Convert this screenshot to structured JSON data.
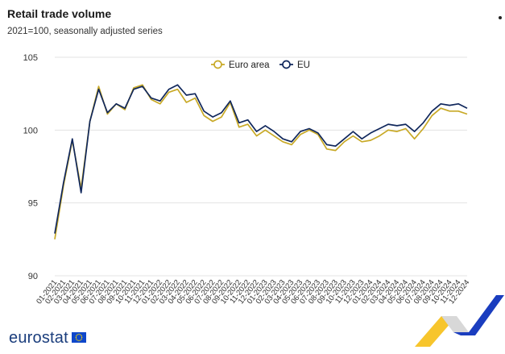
{
  "header": {
    "title": "Retail trade volume",
    "subtitle": "2021=100, seasonally adjusted series"
  },
  "footer": {
    "logo_text": "eurostat"
  },
  "colors": {
    "euro_area": "#c8a926",
    "eu": "#10275c",
    "grid": "#e3e3e3",
    "brand_blue": "#1a3d7c",
    "accent_yellow": "#f7c52c"
  },
  "chart_data": {
    "type": "line",
    "title": "Retail trade volume",
    "subtitle": "2021=100, seasonally adjusted series",
    "ylim": [
      90,
      105
    ],
    "yticks": [
      90,
      95,
      100,
      105
    ],
    "grid": true,
    "legend_position": "top-center",
    "x": [
      "01-2021",
      "02-2021",
      "03-2021",
      "04-2021",
      "05-2021",
      "06-2021",
      "07-2021",
      "08-2021",
      "09-2021",
      "10-2021",
      "11-2021",
      "12-2021",
      "01-2022",
      "02-2022",
      "03-2022",
      "04-2022",
      "05-2022",
      "06-2022",
      "07-2022",
      "08-2022",
      "09-2022",
      "10-2022",
      "11-2022",
      "12-2022",
      "01-2023",
      "02-2023",
      "03-2023",
      "04-2023",
      "05-2023",
      "06-2023",
      "07-2023",
      "08-2023",
      "09-2023",
      "10-2023",
      "11-2023",
      "12-2023",
      "01-2024",
      "02-2024",
      "03-2024",
      "04-2024",
      "05-2024",
      "06-2024",
      "07-2024",
      "08-2024",
      "09-2024",
      "10-2024",
      "11-2024",
      "12-2024"
    ],
    "xtick_labels": [
      "01-2021",
      "02-2021",
      "03-2021",
      "04-2021",
      "05-2021",
      "06-2021",
      "07-2021",
      "08-2021",
      "09-2021",
      "10-2021",
      "11-2021",
      "12-2021",
      "01-2022",
      "02-2022",
      "03-2022",
      "04-2022",
      "05-2022",
      "06-2022",
      "07-2022",
      "08-2022",
      "09-2022",
      "10-2022",
      "11-2022",
      "12-2022",
      "01-2023",
      "02-2023",
      "03-2023",
      "04-2023",
      "05-2023",
      "06-2023",
      "07-2023",
      "08-2023",
      "09-2023",
      "10-2023",
      "11-2023",
      "12-2023",
      "01-2024",
      "02-2024",
      "03-2024",
      "04-2024",
      "05-2024",
      "06-2024",
      "07-2024",
      "08-2024",
      "09-2024",
      "10-2024",
      "11-2024",
      "12-2024"
    ],
    "series": [
      {
        "name": "Euro area",
        "color": "#c8a926",
        "values": [
          92.5,
          96.2,
          99.3,
          96.0,
          100.6,
          103.0,
          101.1,
          101.8,
          101.4,
          102.9,
          103.1,
          102.1,
          101.8,
          102.6,
          102.8,
          101.9,
          102.2,
          101.0,
          100.6,
          100.9,
          101.9,
          100.2,
          100.4,
          99.6,
          100.0,
          99.6,
          99.2,
          99.0,
          99.7,
          100.0,
          99.7,
          98.7,
          98.6,
          99.2,
          99.6,
          99.2,
          99.3,
          99.6,
          100.0,
          99.9,
          100.1,
          99.4,
          100.1,
          101.0,
          101.5,
          101.3,
          101.3,
          101.1
        ]
      },
      {
        "name": "EU",
        "color": "#10275c",
        "values": [
          92.9,
          96.4,
          99.4,
          95.7,
          100.6,
          102.8,
          101.2,
          101.8,
          101.5,
          102.8,
          103.0,
          102.2,
          102.0,
          102.8,
          103.1,
          102.4,
          102.5,
          101.3,
          100.9,
          101.2,
          102.0,
          100.5,
          100.7,
          99.9,
          100.3,
          99.9,
          99.4,
          99.2,
          99.9,
          100.1,
          99.8,
          99.0,
          98.9,
          99.4,
          99.9,
          99.4,
          99.8,
          100.1,
          100.4,
          100.3,
          100.4,
          99.9,
          100.5,
          101.3,
          101.8,
          101.7,
          101.8,
          101.5
        ]
      }
    ]
  }
}
